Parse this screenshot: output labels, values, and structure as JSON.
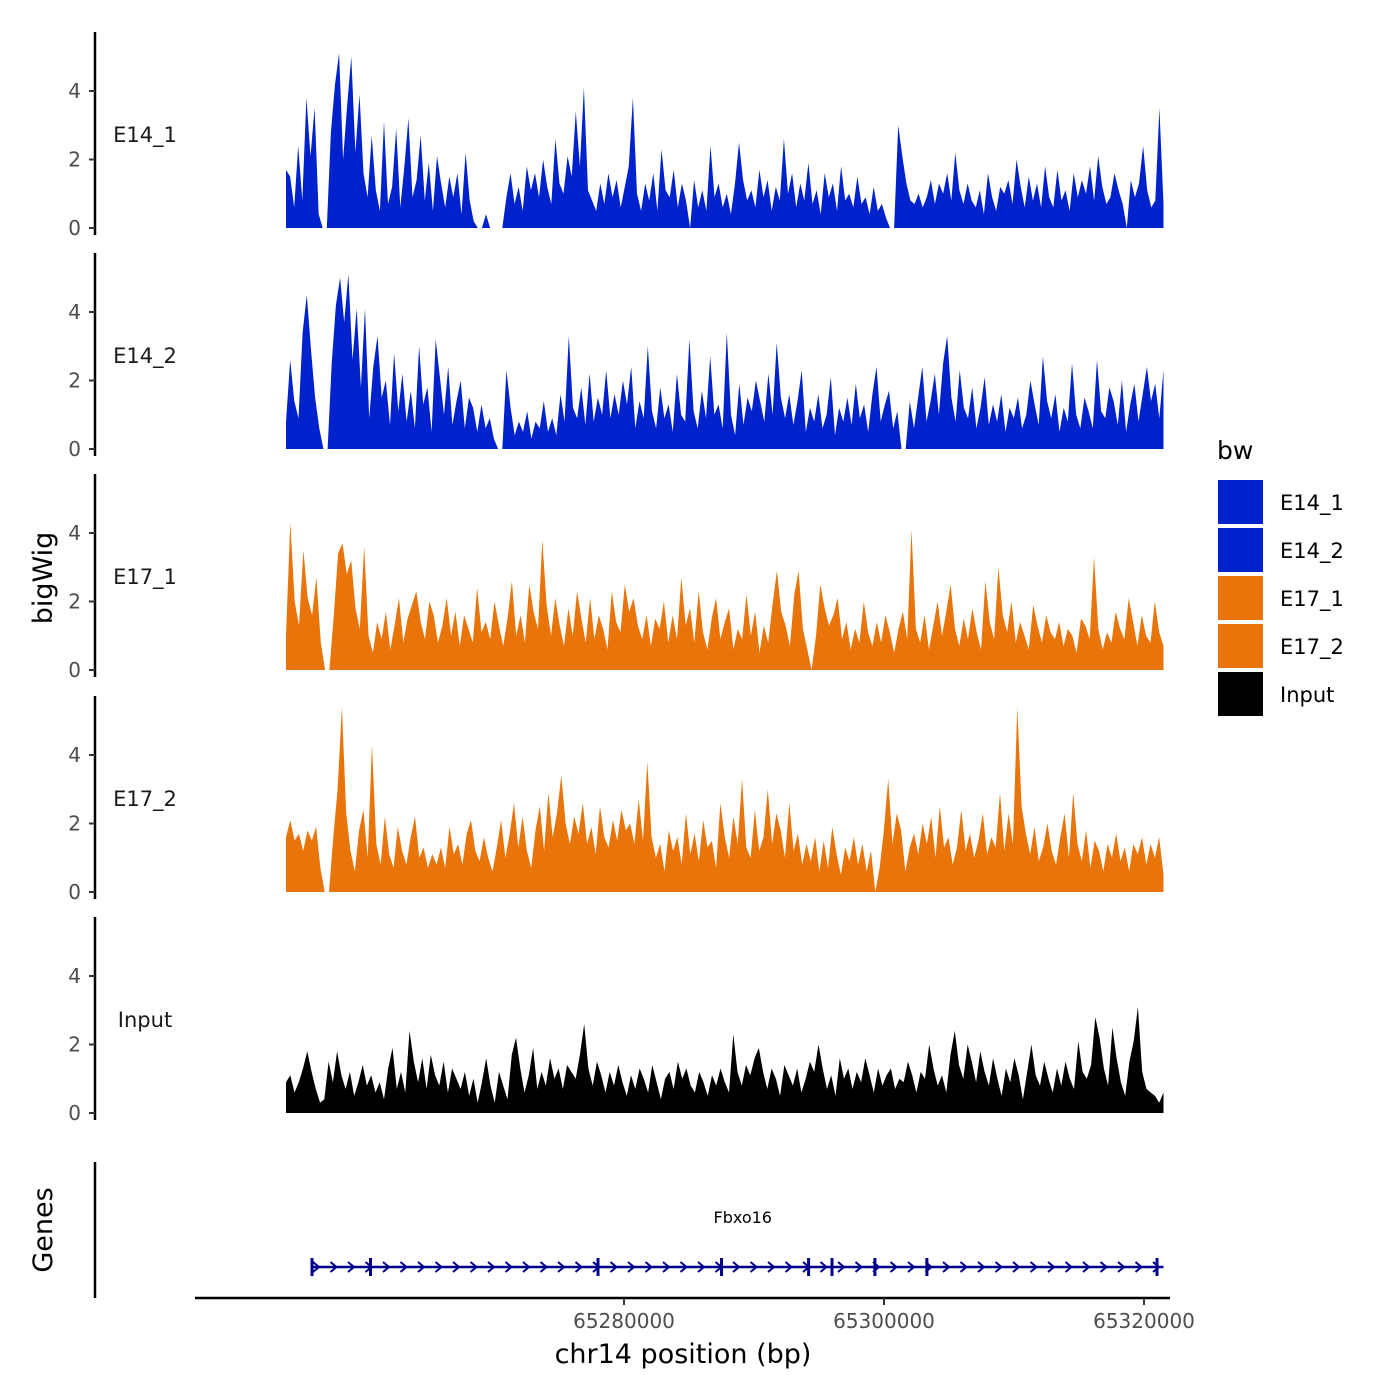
{
  "chart_data": {
    "type": "area",
    "ylabel": "bigWig",
    "xlabel": "chr14 position (bp)",
    "chromosome": "chr14",
    "xlim": [
      65247000,
      65322000
    ],
    "x_range_data": [
      65254000,
      65321500
    ],
    "ylim": [
      0,
      5.5
    ],
    "y_ticks": [
      0,
      2,
      4
    ],
    "x_ticks": [
      65280000,
      65300000,
      65320000
    ],
    "x_tick_labels": [
      "65280000",
      "65300000",
      "65320000"
    ],
    "tracks": [
      {
        "name": "E14_1",
        "label": "E14_1",
        "color": "#0022CC",
        "values": [
          1.7,
          1.5,
          0.6,
          2.4,
          0.8,
          3.8,
          2.1,
          3.5,
          0.4,
          0.0,
          0.0,
          2.8,
          4.2,
          5.1,
          2.0,
          3.6,
          5.0,
          2.2,
          3.9,
          1.6,
          0.9,
          2.7,
          1.1,
          0.5,
          3.1,
          0.7,
          1.2,
          2.9,
          0.6,
          1.8,
          3.2,
          0.9,
          1.4,
          2.7,
          0.8,
          1.9,
          0.5,
          2.1,
          1.3,
          0.6,
          1.5,
          0.9,
          1.6,
          0.4,
          2.2,
          0.8,
          0.2,
          0.0,
          0.0,
          0.4,
          0.0,
          0.0,
          0.0,
          0.0,
          0.9,
          1.6,
          0.7,
          1.2,
          0.5,
          1.8,
          1.1,
          1.6,
          0.9,
          2.0,
          1.2,
          0.7,
          2.6,
          1.3,
          1.0,
          2.1,
          1.5,
          3.4,
          1.8,
          4.1,
          1.1,
          0.8,
          0.5,
          1.3,
          0.7,
          1.6,
          0.9,
          1.4,
          0.6,
          1.2,
          1.8,
          3.8,
          1.0,
          0.5,
          1.3,
          0.8,
          1.6,
          0.5,
          2.3,
          1.1,
          0.9,
          1.7,
          0.6,
          1.3,
          0.8,
          0.0,
          1.4,
          0.6,
          1.1,
          0.5,
          2.4,
          0.9,
          1.3,
          0.6,
          1.0,
          0.4,
          1.3,
          2.5,
          1.4,
          0.8,
          1.1,
          0.6,
          1.7,
          0.9,
          1.4,
          0.5,
          1.2,
          0.8,
          2.6,
          1.0,
          1.6,
          0.6,
          1.3,
          0.8,
          1.9,
          0.7,
          1.1,
          0.4,
          1.6,
          0.9,
          1.3,
          0.5,
          1.8,
          0.8,
          1.0,
          0.6,
          1.5,
          0.7,
          0.9,
          0.4,
          1.2,
          0.5,
          0.7,
          0.3,
          0.0,
          0.0,
          3.0,
          2.1,
          1.3,
          0.8,
          0.7,
          1.0,
          0.6,
          0.9,
          1.4,
          0.7,
          1.3,
          1.0,
          1.6,
          0.8,
          2.2,
          1.1,
          0.7,
          1.3,
          0.8,
          0.6,
          1.1,
          0.4,
          1.6,
          0.9,
          0.5,
          1.2,
          1.0,
          1.4,
          0.7,
          2.0,
          1.2,
          0.6,
          1.5,
          0.8,
          1.3,
          0.6,
          1.8,
          0.9,
          0.6,
          1.7,
          0.8,
          1.1,
          0.5,
          1.6,
          0.9,
          1.4,
          1.0,
          1.8,
          0.8,
          2.1,
          1.2,
          0.7,
          0.9,
          1.6,
          1.1,
          0.7,
          0.0,
          1.4,
          0.9,
          1.3,
          2.4,
          1.1,
          0.6,
          0.8,
          3.5,
          0.7
        ]
      },
      {
        "name": "E14_2",
        "label": "E14_2",
        "color": "#0022CC",
        "values": [
          0.8,
          2.6,
          1.4,
          0.9,
          3.4,
          4.5,
          2.9,
          1.5,
          0.6,
          0.0,
          0.0,
          2.5,
          4.2,
          5.0,
          3.7,
          5.1,
          2.6,
          4.1,
          1.8,
          4.1,
          0.9,
          2.4,
          3.3,
          1.5,
          2.0,
          0.7,
          2.8,
          1.1,
          2.2,
          0.8,
          1.7,
          0.6,
          3.0,
          1.3,
          1.8,
          0.5,
          3.2,
          2.1,
          1.0,
          2.4,
          0.7,
          1.4,
          2.0,
          0.6,
          1.5,
          1.2,
          0.5,
          1.3,
          0.6,
          0.9,
          0.3,
          0.0,
          0.0,
          2.3,
          1.2,
          0.4,
          0.8,
          0.5,
          1.1,
          0.3,
          0.8,
          0.6,
          1.4,
          0.5,
          0.9,
          0.4,
          1.6,
          0.8,
          3.3,
          1.2,
          0.9,
          1.8,
          0.7,
          2.2,
          0.8,
          1.5,
          1.0,
          2.3,
          0.9,
          1.6,
          1.0,
          2.0,
          1.3,
          2.4,
          0.6,
          1.4,
          0.9,
          3.0,
          1.1,
          0.6,
          1.8,
          0.9,
          1.3,
          0.5,
          2.2,
          1.0,
          0.8,
          3.2,
          1.1,
          0.6,
          1.7,
          0.9,
          2.7,
          1.0,
          1.3,
          0.6,
          3.4,
          1.0,
          0.4,
          1.9,
          0.7,
          1.5,
          1.1,
          2.0,
          1.4,
          0.8,
          2.2,
          1.0,
          3.1,
          1.5,
          0.9,
          1.6,
          0.7,
          1.4,
          2.3,
          0.5,
          1.2,
          0.8,
          1.6,
          0.6,
          1.0,
          2.1,
          0.4,
          1.2,
          0.8,
          1.5,
          0.7,
          1.9,
          0.9,
          1.3,
          0.5,
          1.6,
          2.4,
          0.8,
          1.3,
          1.7,
          0.6,
          1.1,
          0.0,
          0.0,
          1.4,
          0.6,
          1.5,
          2.4,
          0.8,
          1.4,
          2.2,
          1.0,
          2.5,
          3.3,
          1.5,
          0.8,
          2.3,
          1.2,
          0.9,
          1.8,
          0.6,
          1.2,
          2.1,
          0.7,
          1.3,
          0.8,
          1.6,
          0.5,
          1.2,
          0.9,
          1.5,
          0.6,
          1.0,
          2.0,
          1.3,
          0.7,
          2.7,
          1.4,
          0.9,
          1.6,
          0.5,
          1.2,
          0.8,
          2.5,
          1.0,
          0.6,
          1.5,
          1.1,
          0.6,
          2.6,
          1.1,
          0.9,
          1.8,
          1.4,
          0.7,
          2.0,
          0.5,
          1.3,
          1.9,
          0.8,
          1.6,
          2.4,
          1.4,
          1.9,
          0.9,
          2.3
        ]
      },
      {
        "name": "E17_1",
        "label": "E17_1",
        "color": "#E8740A",
        "values": [
          1.0,
          4.3,
          2.0,
          1.3,
          3.5,
          2.1,
          1.6,
          2.7,
          0.8,
          0.0,
          0.0,
          1.6,
          3.4,
          3.7,
          2.8,
          3.2,
          1.8,
          1.2,
          3.6,
          1.0,
          0.5,
          1.4,
          0.9,
          1.7,
          0.6,
          1.3,
          2.1,
          0.8,
          1.5,
          1.9,
          2.3,
          1.4,
          0.9,
          2.0,
          1.6,
          0.8,
          1.3,
          2.1,
          1.0,
          1.7,
          0.7,
          1.6,
          1.2,
          0.8,
          2.4,
          1.1,
          1.4,
          0.9,
          2.0,
          1.3,
          0.7,
          1.5,
          2.6,
          1.0,
          1.6,
          0.8,
          2.5,
          1.7,
          1.2,
          3.8,
          1.9,
          1.0,
          2.1,
          1.3,
          0.7,
          1.8,
          1.0,
          2.3,
          1.5,
          0.8,
          2.1,
          0.9,
          1.6,
          1.2,
          0.6,
          2.3,
          1.4,
          1.1,
          2.5,
          1.7,
          2.1,
          1.3,
          0.9,
          1.6,
          0.7,
          1.5,
          1.2,
          2.0,
          0.8,
          1.6,
          0.9,
          2.7,
          1.3,
          1.8,
          0.8,
          2.3,
          1.1,
          0.6,
          1.5,
          2.1,
          0.9,
          1.4,
          1.8,
          0.6,
          1.2,
          0.9,
          2.2,
          1.0,
          1.7,
          0.5,
          1.3,
          0.8,
          1.9,
          2.9,
          1.7,
          1.3,
          0.7,
          2.2,
          2.9,
          1.2,
          0.6,
          0.0,
          1.0,
          2.5,
          1.8,
          1.3,
          1.6,
          2.1,
          0.9,
          1.4,
          0.6,
          1.2,
          0.8,
          2.0,
          1.1,
          0.7,
          1.4,
          0.8,
          1.6,
          1.1,
          0.5,
          1.2,
          1.7,
          0.9,
          4.1,
          1.2,
          0.8,
          1.6,
          0.6,
          1.3,
          2.0,
          1.0,
          1.7,
          2.5,
          1.2,
          0.7,
          1.5,
          0.9,
          1.8,
          1.1,
          0.6,
          2.6,
          1.4,
          0.9,
          3.0,
          1.6,
          1.1,
          2.0,
          0.8,
          1.4,
          1.0,
          0.6,
          1.9,
          1.3,
          0.8,
          1.6,
          1.1,
          0.9,
          1.4,
          0.7,
          1.2,
          1.0,
          0.5,
          1.5,
          1.3,
          0.9,
          3.3,
          1.2,
          0.6,
          1.1,
          0.8,
          1.7,
          1.2,
          0.9,
          2.1,
          1.4,
          0.7,
          1.6,
          1.0,
          0.8,
          2.0,
          1.1,
          0.7
        ]
      },
      {
        "name": "E17_2",
        "label": "E17_2",
        "color": "#E8740A",
        "values": [
          1.6,
          2.1,
          1.5,
          1.7,
          1.2,
          1.8,
          1.5,
          1.9,
          0.7,
          0.0,
          0.0,
          1.6,
          3.0,
          5.4,
          2.3,
          1.2,
          0.6,
          1.8,
          2.4,
          1.0,
          4.3,
          1.4,
          0.8,
          2.2,
          1.1,
          0.7,
          1.9,
          1.2,
          0.8,
          1.6,
          2.2,
          1.0,
          1.3,
          0.7,
          1.1,
          0.8,
          1.3,
          0.7,
          1.9,
          1.1,
          1.4,
          0.8,
          1.7,
          2.1,
          1.2,
          0.9,
          1.6,
          1.0,
          0.6,
          1.3,
          2.1,
          1.0,
          1.7,
          2.6,
          1.3,
          2.2,
          1.2,
          0.7,
          1.8,
          2.5,
          1.2,
          2.9,
          1.6,
          2.3,
          3.4,
          2.0,
          1.4,
          2.2,
          1.7,
          2.6,
          1.4,
          1.9,
          1.1,
          2.5,
          1.6,
          1.3,
          2.1,
          1.5,
          2.4,
          1.8,
          2.0,
          1.4,
          2.7,
          1.5,
          3.8,
          1.6,
          1.0,
          1.4,
          0.6,
          1.8,
          1.2,
          1.6,
          0.8,
          2.3,
          1.1,
          1.7,
          0.9,
          2.1,
          1.3,
          1.5,
          0.7,
          2.6,
          1.6,
          1.0,
          2.2,
          1.4,
          3.3,
          1.3,
          1.0,
          2.4,
          1.2,
          1.6,
          3.0,
          1.4,
          2.3,
          1.8,
          1.0,
          2.6,
          1.2,
          1.7,
          0.8,
          1.4,
          0.9,
          1.6,
          0.6,
          1.5,
          0.7,
          1.9,
          1.1,
          0.5,
          1.3,
          0.9,
          1.6,
          0.8,
          1.4,
          0.6,
          1.2,
          0.0,
          0.7,
          1.8,
          3.3,
          1.4,
          2.3,
          1.8,
          0.6,
          1.3,
          1.7,
          1.1,
          2.0,
          1.4,
          2.2,
          1.0,
          2.5,
          1.3,
          1.6,
          0.8,
          1.3,
          2.4,
          1.2,
          1.7,
          1.0,
          1.5,
          2.3,
          1.1,
          1.6,
          1.3,
          2.9,
          1.2,
          2.3,
          1.4,
          5.4,
          2.5,
          1.7,
          1.1,
          1.9,
          0.9,
          1.3,
          2.0,
          1.2,
          0.8,
          1.6,
          2.3,
          1.0,
          2.9,
          1.4,
          0.9,
          1.8,
          0.7,
          1.5,
          1.2,
          0.6,
          1.4,
          1.0,
          1.7,
          0.9,
          1.3,
          0.6,
          1.4,
          1.1,
          1.6,
          0.8,
          1.4,
          1.0,
          1.6,
          0.5
        ]
      },
      {
        "name": "Input",
        "label": "Input",
        "color": "#000000",
        "values": [
          0.9,
          1.1,
          0.6,
          0.9,
          1.3,
          1.8,
          1.2,
          0.7,
          0.3,
          0.4,
          1.5,
          0.9,
          1.8,
          1.1,
          0.7,
          1.2,
          0.5,
          0.9,
          1.4,
          0.8,
          1.1,
          0.6,
          0.9,
          0.4,
          1.3,
          1.9,
          0.7,
          1.2,
          0.6,
          2.4,
          1.5,
          0.9,
          1.6,
          0.7,
          1.7,
          1.1,
          0.8,
          1.5,
          0.6,
          1.3,
          1.0,
          0.7,
          1.2,
          0.5,
          1.0,
          0.3,
          0.9,
          1.6,
          0.8,
          0.3,
          1.2,
          0.8,
          0.4,
          1.7,
          2.2,
          1.3,
          0.6,
          1.1,
          1.9,
          0.7,
          1.2,
          0.8,
          1.6,
          1.0,
          1.3,
          0.7,
          1.4,
          1.2,
          1.0,
          1.7,
          2.6,
          1.3,
          0.8,
          1.5,
          1.1,
          0.6,
          1.2,
          0.8,
          1.4,
          0.9,
          0.5,
          1.1,
          0.7,
          1.3,
          1.0,
          0.6,
          1.4,
          0.9,
          0.4,
          1.0,
          1.2,
          0.7,
          1.5,
          1.0,
          1.3,
          0.8,
          0.6,
          1.2,
          0.9,
          0.5,
          1.1,
          0.8,
          1.3,
          0.9,
          0.6,
          2.3,
          1.2,
          0.8,
          1.4,
          1.1,
          1.6,
          1.9,
          1.2,
          0.7,
          1.3,
          1.0,
          0.5,
          1.4,
          1.1,
          0.8,
          1.3,
          0.6,
          1.0,
          1.5,
          1.2,
          2.0,
          1.3,
          0.7,
          1.1,
          0.5,
          1.6,
          1.0,
          1.3,
          0.7,
          1.2,
          0.9,
          1.6,
          1.1,
          0.6,
          1.3,
          0.8,
          1.1,
          1.3,
          0.7,
          1.0,
          0.9,
          1.5,
          1.1,
          0.6,
          1.2,
          1.0,
          2.0,
          1.3,
          0.8,
          1.1,
          0.6,
          1.7,
          2.4,
          1.4,
          1.0,
          2.0,
          1.5,
          0.9,
          1.8,
          1.2,
          0.8,
          1.6,
          1.0,
          0.5,
          1.3,
          0.9,
          1.6,
          1.1,
          0.4,
          1.2,
          2.0,
          1.1,
          0.8,
          1.5,
          1.0,
          0.6,
          1.3,
          0.8,
          1.5,
          1.0,
          0.7,
          2.1,
          1.2,
          1.0,
          1.4,
          2.8,
          2.2,
          1.3,
          0.8,
          2.5,
          1.6,
          0.9,
          0.5,
          1.5,
          2.1,
          3.1,
          1.2,
          0.7,
          0.6,
          0.5,
          0.3,
          0.6
        ]
      }
    ],
    "legend": {
      "title": "bw",
      "position": "right",
      "entries": [
        {
          "label": "E14_1",
          "color": "#0022CC"
        },
        {
          "label": "E14_2",
          "color": "#0022CC"
        },
        {
          "label": "E17_1",
          "color": "#E8740A"
        },
        {
          "label": "E17_2",
          "color": "#E8740A"
        },
        {
          "label": "Input",
          "color": "#000000"
        }
      ]
    },
    "genes_track": {
      "label": "Genes",
      "color": "#00008B",
      "genes": [
        {
          "name": "Fbxo16",
          "start": 65256000,
          "end": 65321500,
          "strand": "+",
          "exon_starts": [
            65256000,
            65260500,
            65278000,
            65287500,
            65294200,
            65296000,
            65299300,
            65303300,
            65321000
          ]
        }
      ]
    }
  }
}
